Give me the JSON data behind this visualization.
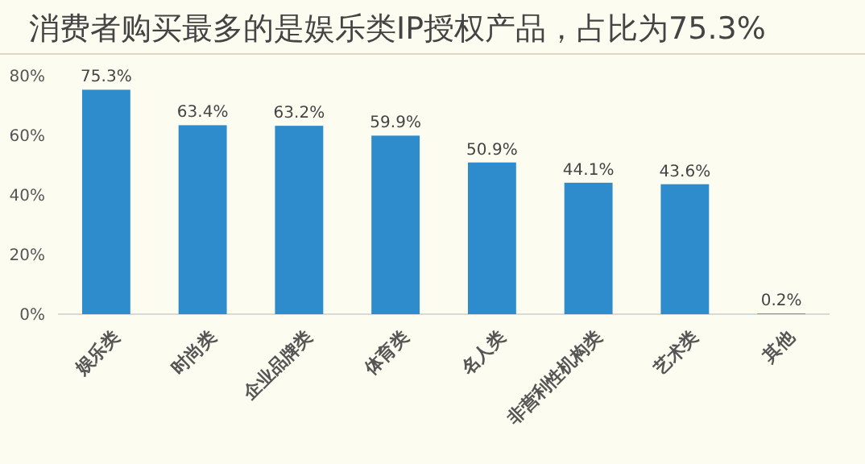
{
  "chart_data": {
    "type": "bar",
    "title": "消费者购买最多的是娱乐类IP授权产品，占比为75.3%",
    "categories": [
      "娱乐类",
      "时尚类",
      "企业品牌类",
      "体育类",
      "名人类",
      "非营利性机构类",
      "艺术类",
      "其他"
    ],
    "values": [
      75.3,
      63.4,
      63.2,
      59.9,
      50.9,
      44.1,
      43.6,
      0.2
    ],
    "value_labels": [
      "75.3%",
      "63.4%",
      "63.2%",
      "59.9%",
      "50.9%",
      "44.1%",
      "43.6%",
      "0.2%"
    ],
    "color": "#2e8bcc",
    "ylim": [
      0,
      80
    ],
    "yticks": [
      {
        "value": 0,
        "label": "0%"
      },
      {
        "value": 20,
        "label": "20%"
      },
      {
        "value": 40,
        "label": "40%"
      },
      {
        "value": 60,
        "label": "60%"
      },
      {
        "value": 80,
        "label": "80%"
      }
    ],
    "grid": false
  }
}
